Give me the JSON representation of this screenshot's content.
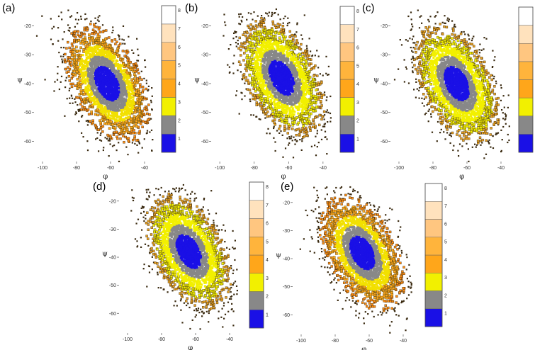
{
  "chart_data": {
    "type": "heatmap",
    "panel_labels": [
      "(a)",
      "(b)",
      "(c)",
      "(d)",
      "(e)"
    ],
    "xlabel": "φ",
    "ylabel": "ψ",
    "x_ticks": [
      -100,
      -80,
      -60,
      -40
    ],
    "y_ticks": [
      -20,
      -30,
      -40,
      -50,
      -60
    ],
    "xlim": [
      -105,
      -35
    ],
    "ylim": [
      -67,
      -14
    ],
    "colorbar": {
      "levels": [
        "1",
        "2",
        "3",
        "4",
        "5",
        "6",
        "7",
        "8"
      ],
      "colors": [
        "#1a10e6",
        "#888888",
        "#f2f000",
        "#ffa61a",
        "#ffb43c",
        "#ffc680",
        "#ffe2bd",
        "#ffffff"
      ]
    },
    "panels": [
      {
        "label": "(a)",
        "center_phi": -62,
        "center_psi": -40,
        "outer_class": "orange-heavy"
      },
      {
        "label": "(b)",
        "center_phi": -64,
        "center_psi": -38,
        "outer_class": "yellow-heavy"
      },
      {
        "label": "(c)",
        "center_phi": -66,
        "center_psi": -40,
        "outer_class": "yellow-heavy"
      },
      {
        "label": "(d)",
        "center_phi": -64,
        "center_psi": -38,
        "outer_class": "yellow-heavy"
      },
      {
        "label": "(e)",
        "center_phi": -64,
        "center_psi": -38,
        "outer_class": "orange-heavy"
      }
    ]
  }
}
